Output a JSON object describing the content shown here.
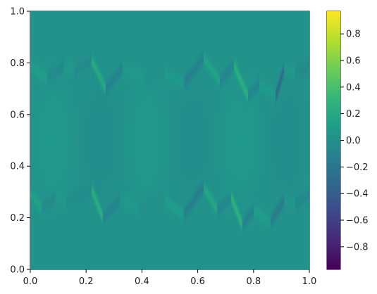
{
  "chart_data": {
    "type": "heatmap",
    "title": "",
    "xlabel": "",
    "ylabel": "",
    "colormap": "viridis",
    "xlim": [
      0.0,
      1.0
    ],
    "ylim": [
      0.0,
      1.0
    ],
    "x_ticks": [
      0.0,
      0.2,
      0.4,
      0.6,
      0.8,
      1.0
    ],
    "x_tick_labels": [
      "0.0",
      "0.2",
      "0.4",
      "0.6",
      "0.8",
      "1.0"
    ],
    "y_ticks": [
      0.0,
      0.2,
      0.4,
      0.6,
      0.8,
      1.0
    ],
    "y_tick_labels": [
      "0.0",
      "0.2",
      "0.4",
      "0.6",
      "0.8",
      "1.0"
    ],
    "colorbar": {
      "range": [
        -0.97,
        0.97
      ],
      "ticks": [
        0.8,
        0.6,
        0.4,
        0.2,
        0.0,
        -0.2,
        -0.4,
        -0.6,
        -0.8
      ],
      "tick_labels": [
        "0.8",
        "0.6",
        "0.4",
        "0.2",
        "0.0",
        "−0.2",
        "−0.4",
        "−0.6",
        "−0.8"
      ]
    },
    "background_value": 0.02,
    "interfaces": [
      {
        "y_center": 0.25,
        "points": [
          [
            0.0,
            0.29
          ],
          [
            0.04,
            0.24
          ],
          [
            0.09,
            0.28
          ],
          [
            0.13,
            0.26
          ],
          [
            0.22,
            0.31
          ],
          [
            0.26,
            0.2
          ],
          [
            0.32,
            0.27
          ],
          [
            0.39,
            0.24
          ],
          [
            0.48,
            0.27
          ],
          [
            0.55,
            0.21
          ],
          [
            0.62,
            0.32
          ],
          [
            0.67,
            0.23
          ],
          [
            0.72,
            0.28
          ],
          [
            0.76,
            0.17
          ],
          [
            0.8,
            0.23
          ],
          [
            0.86,
            0.18
          ],
          [
            0.91,
            0.27
          ],
          [
            0.95,
            0.25
          ],
          [
            1.0,
            0.29
          ]
        ]
      },
      {
        "y_center": 0.75,
        "points": [
          [
            0.0,
            0.79
          ],
          [
            0.06,
            0.74
          ],
          [
            0.12,
            0.79
          ],
          [
            0.16,
            0.77
          ],
          [
            0.22,
            0.81
          ],
          [
            0.27,
            0.7
          ],
          [
            0.33,
            0.78
          ],
          [
            0.41,
            0.74
          ],
          [
            0.48,
            0.76
          ],
          [
            0.55,
            0.72
          ],
          [
            0.62,
            0.82
          ],
          [
            0.68,
            0.73
          ],
          [
            0.73,
            0.79
          ],
          [
            0.78,
            0.67
          ],
          [
            0.82,
            0.72
          ],
          [
            0.88,
            0.67
          ],
          [
            0.91,
            0.78
          ],
          [
            0.95,
            0.76
          ],
          [
            1.0,
            0.79
          ]
        ]
      }
    ]
  }
}
